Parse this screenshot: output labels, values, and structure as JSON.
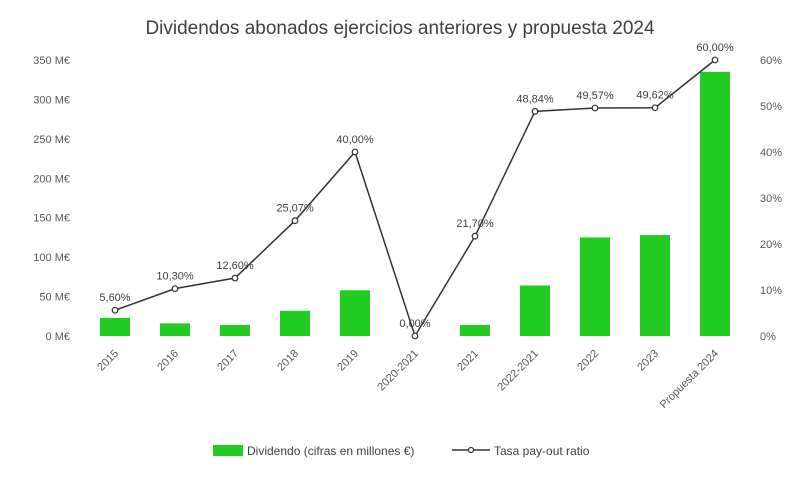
{
  "chart_data": {
    "type": "bar",
    "title": "Dividendos abonados ejercicios anteriores y propuesta 2024",
    "categories": [
      "2015",
      "2016",
      "2017",
      "2018",
      "2019",
      "2020-2021",
      "2021",
      "2022-2021",
      "2022",
      "2023",
      "Propuesta 2024"
    ],
    "series": [
      {
        "name": "Dividendo (cifras en millones €)",
        "type": "bar",
        "axis": "left",
        "color": "#22cc22",
        "values": [
          23,
          16,
          14,
          32,
          58,
          0,
          14,
          64,
          125,
          128,
          335
        ]
      },
      {
        "name": "Tasa pay-out ratio",
        "type": "line",
        "axis": "right",
        "color": "#333333",
        "values": [
          5.6,
          10.3,
          12.6,
          25.07,
          40.0,
          0.0,
          21.7,
          48.84,
          49.57,
          49.62,
          60.0
        ],
        "labels": [
          "5,60%",
          "10,30%",
          "12,60%",
          "25,07%",
          "40,00%",
          "0,00%",
          "21,70%",
          "48,84%",
          "49,57%",
          "49,62%",
          "60,00%"
        ]
      }
    ],
    "y_left": {
      "ticks": [
        0,
        50,
        100,
        150,
        200,
        250,
        300,
        350
      ],
      "tick_labels": [
        "0 M€",
        "50 M€",
        "100 M€",
        "150 M€",
        "200 M€",
        "250 M€",
        "300 M€",
        "350 M€"
      ],
      "ylim": [
        0,
        350
      ]
    },
    "y_right": {
      "ticks": [
        0,
        10,
        20,
        30,
        40,
        50,
        60
      ],
      "tick_labels": [
        "0%",
        "10%",
        "20%",
        "30%",
        "40%",
        "50%",
        "60%"
      ],
      "ylim": [
        0,
        60
      ]
    },
    "grid": false,
    "legend_position": "bottom"
  }
}
